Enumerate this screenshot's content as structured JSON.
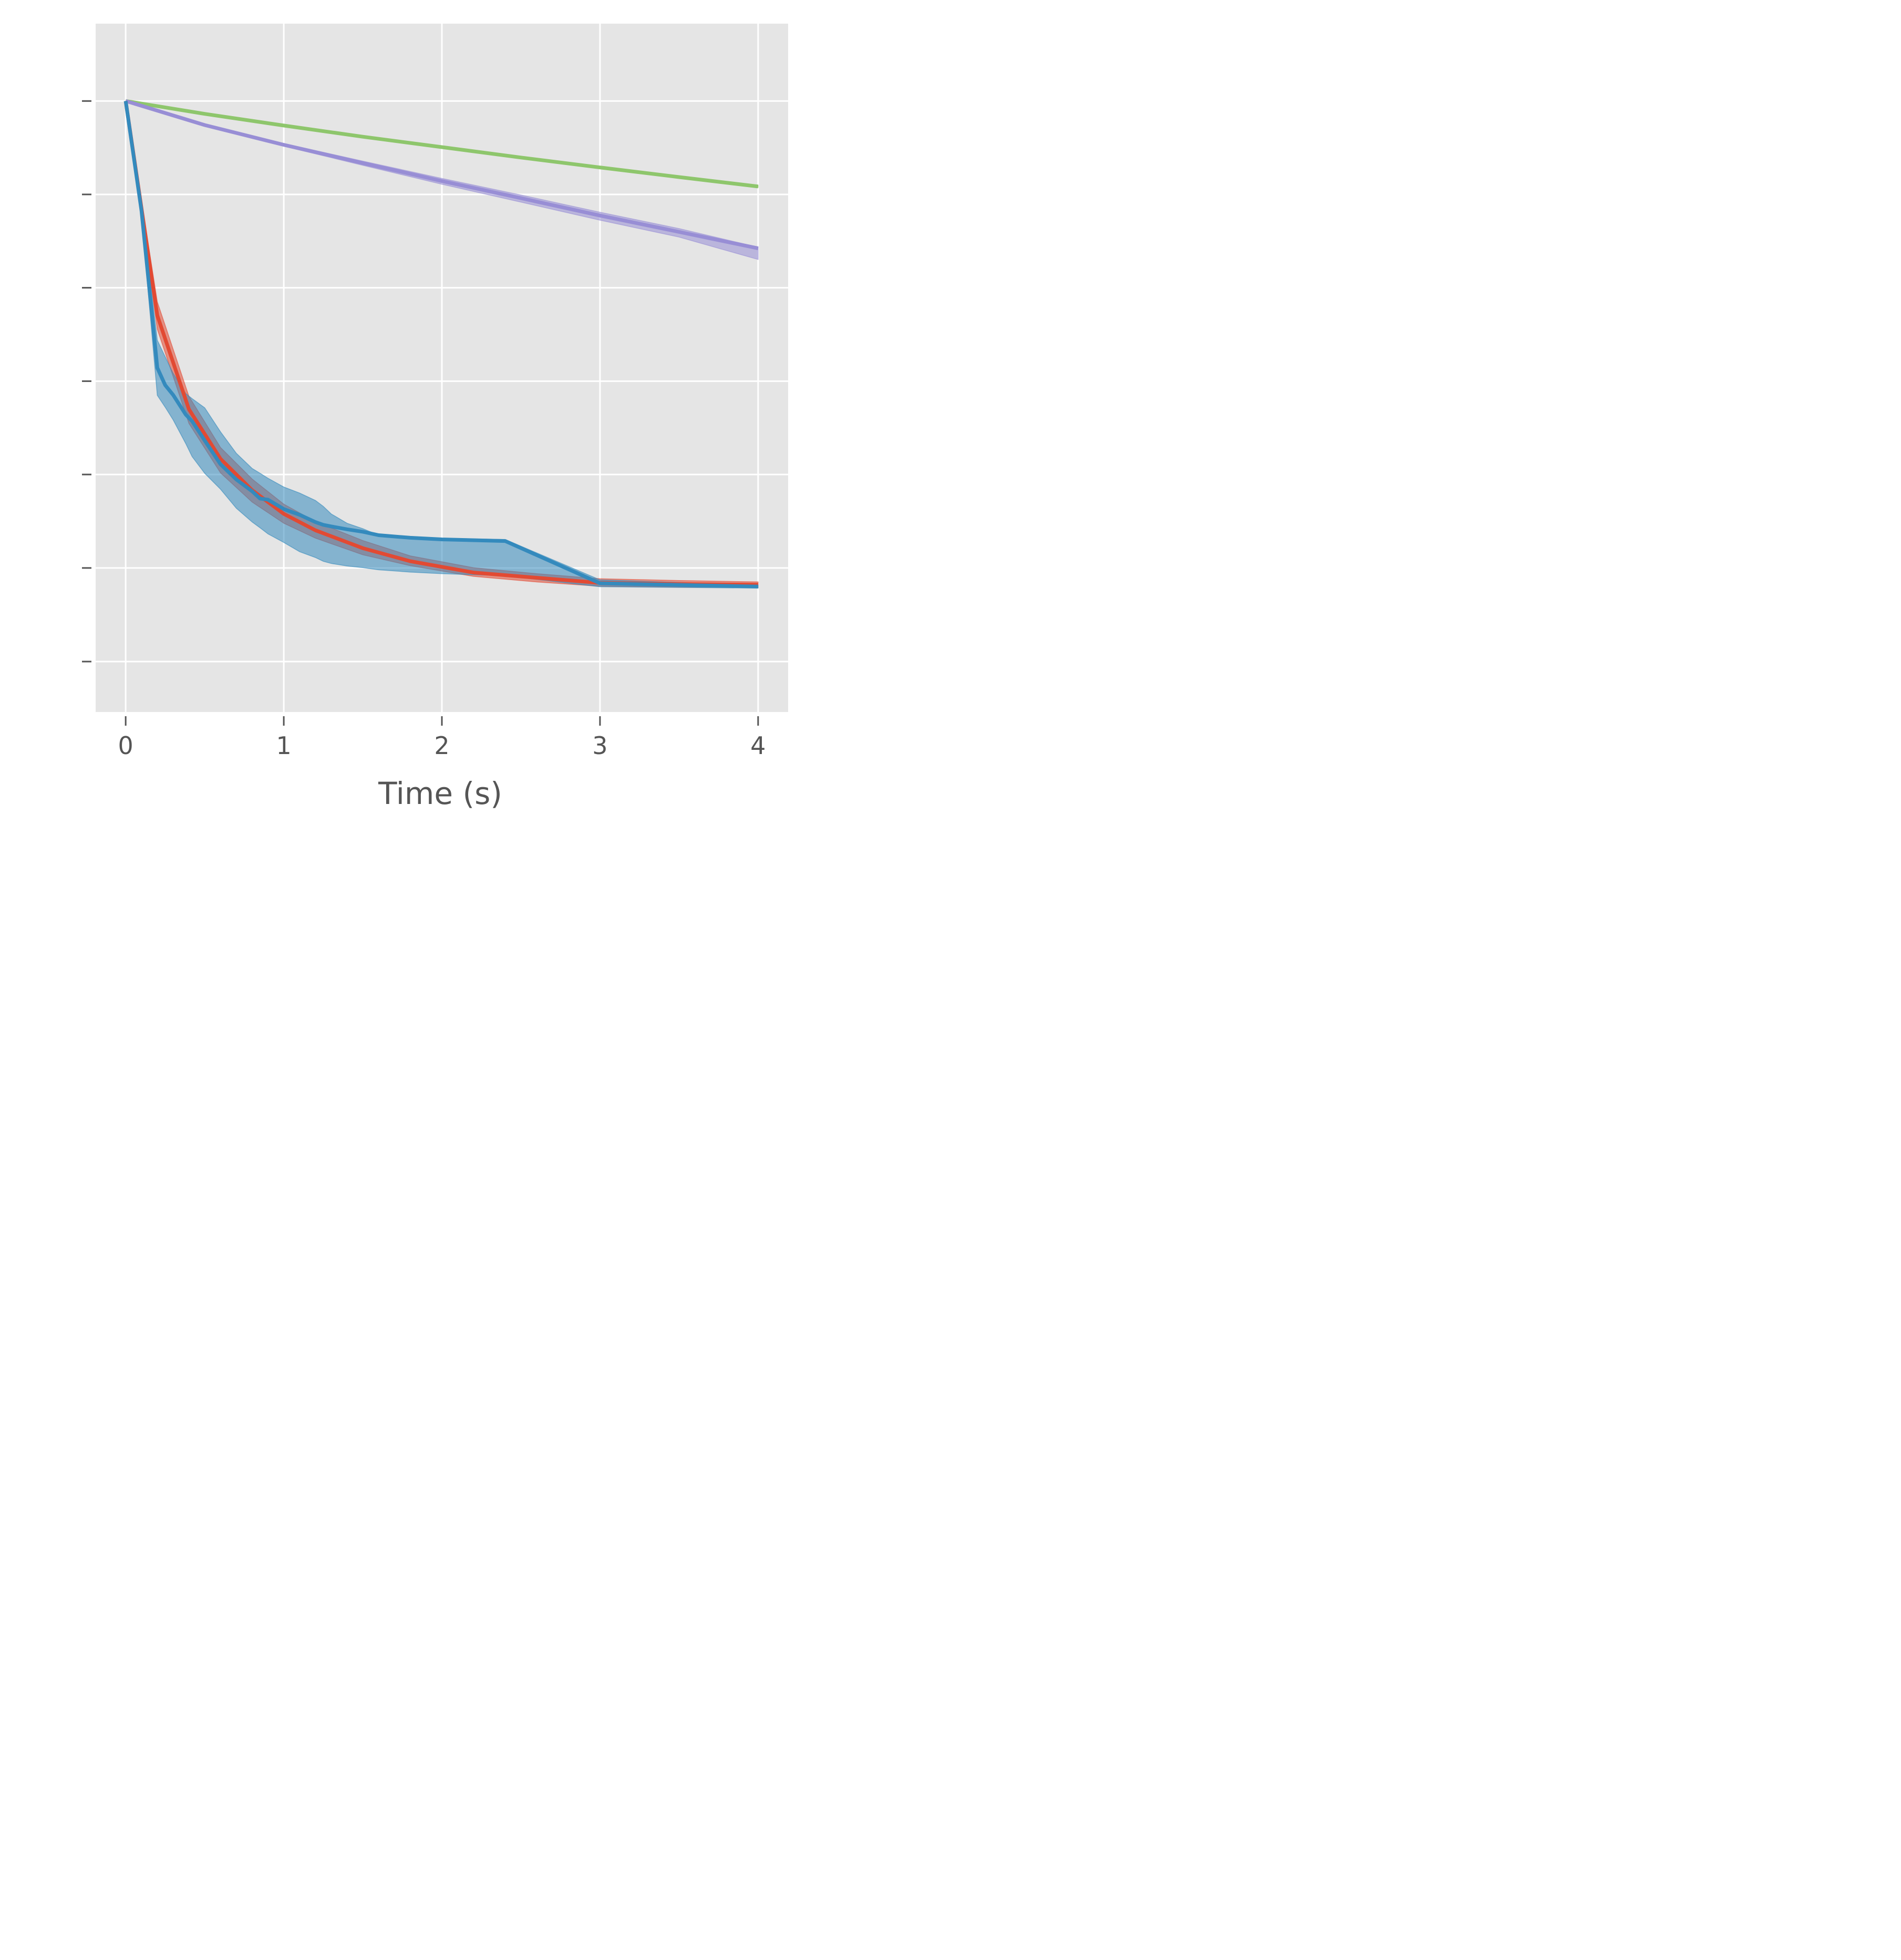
{
  "chart_data": {
    "type": "line",
    "title": "",
    "xlabel": "Time (s)",
    "ylabel": "",
    "xlim": [
      -0.19,
      4.19
    ],
    "ylim": [
      0.0,
      1.0
    ],
    "x_ticks": [
      0,
      1,
      2,
      3,
      4
    ],
    "x_tick_labels": [
      "0",
      "1",
      "2",
      "3",
      "4"
    ],
    "y_ticks": [
      0.0733,
      0.2093,
      0.345,
      0.4806,
      0.6163,
      0.7519,
      0.8876
    ],
    "y_tick_labels": [
      "",
      "",
      "",
      "",
      "",
      "",
      ""
    ],
    "grid": true,
    "legend": "none",
    "colors": {
      "background": "#e5e5e5",
      "grid": "#ffffff",
      "tick": "#555555",
      "green": "#8ec66c",
      "purple": "#988ed5",
      "red": "#e24a33",
      "blue": "#348abd"
    },
    "series": [
      {
        "color": "#8ec66c",
        "x": [
          0,
          0.5,
          1,
          1.5,
          2,
          2.5,
          3,
          3.5,
          4
        ],
        "y": [
          0.8876,
          0.8689,
          0.852,
          0.8357,
          0.8206,
          0.8055,
          0.7911,
          0.7771,
          0.7634
        ],
        "lower": [
          0.8876,
          0.8686,
          0.8514,
          0.8348,
          0.8195,
          0.8043,
          0.7899,
          0.7758,
          0.762
        ],
        "upper": [
          0.8876,
          0.8692,
          0.8526,
          0.8366,
          0.8217,
          0.8067,
          0.7923,
          0.7784,
          0.7648
        ]
      },
      {
        "color": "#988ed5",
        "x": [
          0,
          0.5,
          1,
          1.5,
          2,
          2.5,
          3,
          3.5,
          4
        ],
        "y": [
          0.8876,
          0.8527,
          0.824,
          0.7975,
          0.7713,
          0.7465,
          0.7212,
          0.6975,
          0.6736
        ],
        "lower": [
          0.8876,
          0.8515,
          0.822,
          0.7942,
          0.7667,
          0.7407,
          0.7145,
          0.6899,
          0.6574
        ],
        "upper": [
          0.8876,
          0.8535,
          0.8259,
          0.8003,
          0.7752,
          0.7511,
          0.726,
          0.7023,
          0.6752
        ]
      },
      {
        "color": "#e24a33",
        "x": [
          0,
          0.2,
          0.4,
          0.6,
          0.8,
          1.0,
          1.2,
          1.5,
          1.8,
          2.2,
          2.6,
          3.0,
          3.5,
          4.0
        ],
        "y": [
          0.8876,
          0.576,
          0.4399,
          0.3678,
          0.3223,
          0.2879,
          0.264,
          0.238,
          0.2191,
          0.2026,
          0.195,
          0.1876,
          0.1858,
          0.1848
        ],
        "lower": [
          0.8876,
          0.556,
          0.4193,
          0.3474,
          0.305,
          0.2743,
          0.2526,
          0.2284,
          0.2126,
          0.197,
          0.1889,
          0.1827,
          0.1813,
          0.1808
        ],
        "upper": [
          0.8876,
          0.5958,
          0.4587,
          0.3843,
          0.3384,
          0.302,
          0.2766,
          0.2491,
          0.2269,
          0.2096,
          0.2009,
          0.1936,
          0.1911,
          0.189
        ]
      },
      {
        "color": "#348abd",
        "x": [
          0,
          0.1,
          0.2,
          0.25,
          0.3,
          0.38,
          0.42,
          0.5,
          0.6,
          0.7,
          0.8,
          0.85,
          0.9,
          1.0,
          1.1,
          1.2,
          1.25,
          1.3,
          1.4,
          1.5,
          1.6,
          1.8,
          2.0,
          2.4,
          3.0,
          4.0
        ],
        "y": [
          0.8876,
          0.728,
          0.5,
          0.4749,
          0.4608,
          0.4321,
          0.4225,
          0.3944,
          0.3599,
          0.3378,
          0.3207,
          0.3101,
          0.3085,
          0.2948,
          0.2865,
          0.2759,
          0.2719,
          0.2696,
          0.2654,
          0.2619,
          0.2569,
          0.2531,
          0.2508,
          0.2484,
          0.187,
          0.1822
        ],
        "lower": [
          0.8876,
          0.72,
          0.46,
          0.4428,
          0.4246,
          0.39,
          0.3711,
          0.3468,
          0.3237,
          0.296,
          0.276,
          0.2676,
          0.2588,
          0.2463,
          0.2329,
          0.2244,
          0.2189,
          0.2158,
          0.2121,
          0.2097,
          0.2066,
          0.2033,
          0.2009,
          0.198,
          0.182,
          0.18
        ],
        "upper": [
          0.8876,
          0.736,
          0.54,
          0.516,
          0.4922,
          0.4627,
          0.4553,
          0.442,
          0.407,
          0.3758,
          0.3538,
          0.3469,
          0.3396,
          0.3269,
          0.3181,
          0.3073,
          0.2987,
          0.2877,
          0.2742,
          0.2663,
          0.2569,
          0.2546,
          0.2522,
          0.2507,
          0.192,
          0.1845
        ]
      }
    ]
  }
}
